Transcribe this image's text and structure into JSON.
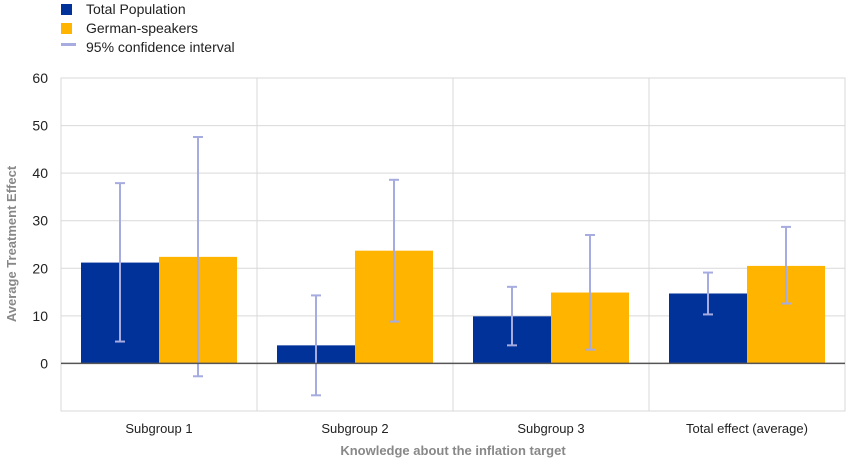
{
  "chart_data": {
    "type": "bar",
    "title": "",
    "xlabel": "Knowledge about the inflation target",
    "ylabel": "Average Treatment Effect",
    "ylim": [
      -10,
      60
    ],
    "yticks": [
      0,
      10,
      20,
      30,
      40,
      50,
      60
    ],
    "grid": true,
    "legend_position": "top-left",
    "categories": [
      "Subgroup 1",
      "Subgroup 2",
      "Subgroup 3",
      "Total effect (average)"
    ],
    "series": [
      {
        "name": "Total Population",
        "color": "#003299",
        "values": [
          21.2,
          3.8,
          9.9,
          14.7
        ],
        "ci_low": [
          4.6,
          -6.7,
          3.8,
          10.3
        ],
        "ci_high": [
          37.9,
          14.3,
          16.1,
          19.1
        ]
      },
      {
        "name": "German-speakers",
        "color": "#FFB400",
        "values": [
          22.4,
          23.7,
          14.9,
          20.5
        ],
        "ci_low": [
          -2.7,
          8.8,
          2.9,
          12.6
        ],
        "ci_high": [
          47.6,
          38.6,
          27.0,
          28.7
        ]
      }
    ],
    "ci_legend": {
      "name": "95% confidence interval",
      "color": "#A6ACE0"
    }
  }
}
